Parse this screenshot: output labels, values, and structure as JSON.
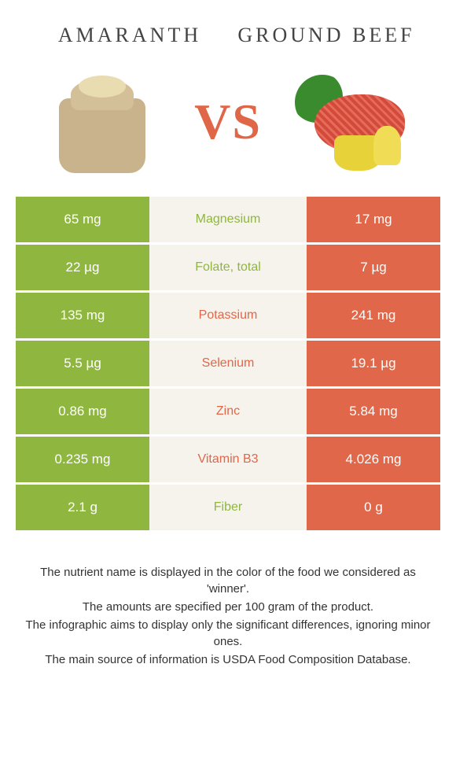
{
  "leftFood": {
    "name": "Amaranth",
    "color": "#8fb63f"
  },
  "rightFood": {
    "name": "Ground Beef",
    "color": "#e06749"
  },
  "vs": "VS",
  "midBg": "#f5f3ec",
  "nutrients": [
    {
      "name": "Magnesium",
      "left": "65 mg",
      "right": "17 mg",
      "winner": "left"
    },
    {
      "name": "Folate, total",
      "left": "22 µg",
      "right": "7 µg",
      "winner": "left"
    },
    {
      "name": "Potassium",
      "left": "135 mg",
      "right": "241 mg",
      "winner": "right"
    },
    {
      "name": "Selenium",
      "left": "5.5 µg",
      "right": "19.1 µg",
      "winner": "right"
    },
    {
      "name": "Zinc",
      "left": "0.86 mg",
      "right": "5.84 mg",
      "winner": "right"
    },
    {
      "name": "Vitamin B3",
      "left": "0.235 mg",
      "right": "4.026 mg",
      "winner": "right"
    },
    {
      "name": "Fiber",
      "left": "2.1 g",
      "right": "0 g",
      "winner": "left"
    }
  ],
  "footer": [
    "The nutrient name is displayed in the color of the food we considered as 'winner'.",
    "The amounts are specified per 100 gram of the product.",
    "The infographic aims to display only the significant differences, ignoring minor ones.",
    "The main source of information is USDA Food Composition Database."
  ]
}
